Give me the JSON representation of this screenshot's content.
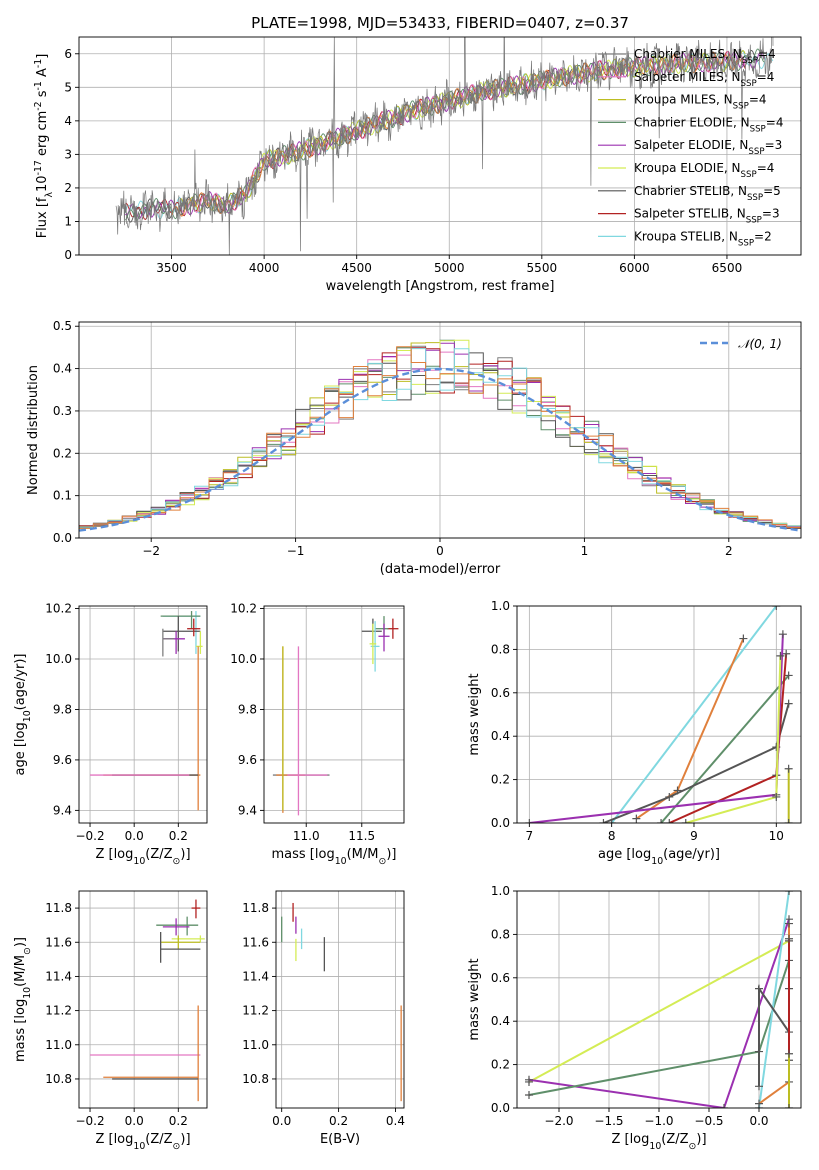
{
  "colors": {
    "chabrier_miles": "#7f7f7f",
    "salpeter_miles": "#e377c2",
    "kroupa_miles": "#bcbd22",
    "chabrier_elodie": "#5f8f6a",
    "salpeter_elodie": "#9b30b0",
    "kroupa_elodie": "#d4ec55",
    "chabrier_stelib": "#555555",
    "salpeter_stelib": "#b22222",
    "kroupa_stelib": "#80d8e0",
    "orange": "#e0803c",
    "normal": "#5b8fd9"
  },
  "chart_data": [
    {
      "id": "spectrum",
      "type": "line",
      "title": "PLATE=1998, MJD=53433, FIBERID=0407, z=0.37",
      "xlabel": "wavelength [Angstrom, rest frame]",
      "ylabel": "Flux [f$_\\lambda$10$^{-17}$ erg cm$^{-2}$ s$^{-1}$ A$^{-1}$]",
      "xlim": [
        3000,
        6900
      ],
      "ylim": [
        0,
        6.5
      ],
      "xticks": [
        "3500",
        "4000",
        "4500",
        "5000",
        "5500",
        "6000",
        "6500"
      ],
      "yticks": [
        "0",
        "1",
        "2",
        "3",
        "4",
        "5",
        "6"
      ],
      "grid": true,
      "legend_position": "upper right",
      "legend": [
        {
          "label": "Chabrier MILES, N",
          "sub": "SSP",
          "tail": "=4"
        },
        {
          "label": "Salpeter MILES, N",
          "sub": "SSP",
          "tail": "=4"
        },
        {
          "label": "Kroupa MILES, N",
          "sub": "SSP",
          "tail": "=4"
        },
        {
          "label": "Chabrier ELODIE, N",
          "sub": "SSP",
          "tail": "=4"
        },
        {
          "label": "Salpeter ELODIE, N",
          "sub": "SSP",
          "tail": "=3"
        },
        {
          "label": "Kroupa ELODIE, N",
          "sub": "SSP",
          "tail": "=4"
        },
        {
          "label": "Chabrier STELIB, N",
          "sub": "SSP",
          "tail": "=5"
        },
        {
          "label": "Salpeter STELIB, N",
          "sub": "SSP",
          "tail": "=3"
        },
        {
          "label": "Kroupa STELIB, N",
          "sub": "SSP",
          "tail": "=2"
        }
      ],
      "continuum": {
        "x": [
          3200,
          3400,
          3500,
          3600,
          3700,
          3800,
          3900,
          4000,
          4200,
          4400,
          4600,
          4800,
          5000,
          5200,
          5400,
          5600,
          5800,
          6000,
          6200,
          6400,
          6600,
          6750
        ],
        "y": [
          1.2,
          1.4,
          1.35,
          1.5,
          1.6,
          1.5,
          1.8,
          2.8,
          3.1,
          3.5,
          3.9,
          4.3,
          4.6,
          4.9,
          5.1,
          5.3,
          5.5,
          5.6,
          5.7,
          5.75,
          5.8,
          5.9
        ]
      }
    },
    {
      "id": "residuals",
      "type": "histogram",
      "xlabel": "(data-model)/error",
      "ylabel": "Normed distribution",
      "xlim": [
        -2.5,
        2.5
      ],
      "ylim": [
        0,
        0.51
      ],
      "xticks": [
        "−2",
        "−1",
        "0",
        "1",
        "2"
      ],
      "yticks": [
        "0.0",
        "0.1",
        "0.2",
        "0.3",
        "0.4",
        "0.5"
      ],
      "grid": true,
      "legend_position": "upper right",
      "legend": [
        "$\\mathcal{N}(0, 1)$"
      ],
      "bin_width": 0.1
    },
    {
      "id": "age_vs_Z",
      "type": "errorbar",
      "xlabel": "Z [log$_{10}$(Z/Z$_\\odot$)]",
      "ylabel": "age  [log$_{10}$(age/yr)]",
      "xlim": [
        -0.25,
        0.33
      ],
      "ylim": [
        9.35,
        10.21
      ],
      "xticks": [
        "−0.2",
        "0.0",
        "0.2"
      ],
      "yticks": [
        "9.4",
        "9.6",
        "9.8",
        "10.0",
        "10.2"
      ],
      "grid": true,
      "points": [
        {
          "model": "kroupa_stelib",
          "x": 0.28,
          "y": 10.17,
          "xerr": [
            0.15,
            0.02
          ],
          "yerr": [
            0.15,
            0.02
          ]
        },
        {
          "model": "chabrier_elodie",
          "x": 0.26,
          "y": 10.17,
          "xerr": [
            0.14,
            0.04
          ],
          "yerr": [
            0.05,
            0.02
          ]
        },
        {
          "model": "chabrier_stelib",
          "x": 0.2,
          "y": 10.11,
          "xerr": [
            0.07,
            0.1
          ],
          "yerr": [
            0.08,
            0.06
          ]
        },
        {
          "model": "salpeter_stelib",
          "x": 0.27,
          "y": 10.12,
          "xerr": [
            0.03,
            0.03
          ],
          "yerr": [
            0.03,
            0.04
          ]
        },
        {
          "model": "salpeter_elodie",
          "x": 0.19,
          "y": 10.08,
          "xerr": [
            0.06,
            0.04
          ],
          "yerr": [
            0.06,
            0.03
          ]
        },
        {
          "model": "chabrier_miles",
          "x": 0.13,
          "y": 10.08,
          "xerr": [
            0.0,
            0.05
          ],
          "yerr": [
            0.07,
            0.04
          ]
        },
        {
          "model": "kroupa_elodie",
          "x": 0.3,
          "y": 10.05,
          "xerr": [
            0.02,
            0.01
          ],
          "yerr": [
            0.03,
            0.06
          ]
        },
        {
          "model": "orange",
          "x": 0.29,
          "y": 9.54,
          "xerr": [
            0.43,
            0.01
          ],
          "yerr": [
            0.14,
            0.51
          ]
        },
        {
          "model": "chabrier_stelib",
          "x": 0.1,
          "y": 9.54,
          "xerr": [
            0.2,
            0.19
          ],
          "yerr": [
            0.0,
            0.0
          ]
        },
        {
          "model": "salpeter_miles",
          "x": -0.1,
          "y": 9.54,
          "xerr": [
            0.1,
            0.35
          ],
          "yerr": [
            0.0,
            0.0
          ]
        }
      ]
    },
    {
      "id": "age_vs_mass",
      "type": "errorbar",
      "xlabel": "mass [log$_{10}$(M/M$_\\odot$)]",
      "xlim": [
        10.62,
        11.88
      ],
      "ylim": [
        9.35,
        10.21
      ],
      "xticks": [
        "11.0",
        "11.5"
      ],
      "yticks": [
        "9.4",
        "9.6",
        "9.8",
        "10.0",
        "10.2"
      ],
      "grid": true,
      "points": [
        {
          "model": "salpeter_stelib",
          "x": 11.78,
          "y": 10.12,
          "xerr": [
            0.05,
            0.05
          ],
          "yerr": [
            0.04,
            0.04
          ]
        },
        {
          "model": "chabrier_elodie",
          "x": 11.7,
          "y": 10.12,
          "xerr": [
            0.08,
            0.04
          ],
          "yerr": [
            0.03,
            0.05
          ]
        },
        {
          "model": "chabrier_stelib",
          "x": 11.6,
          "y": 10.11,
          "xerr": [
            0.1,
            0.08
          ],
          "yerr": [
            0.05,
            0.05
          ]
        },
        {
          "model": "salpeter_elodie",
          "x": 11.7,
          "y": 10.09,
          "xerr": [
            0.05,
            0.05
          ],
          "yerr": [
            0.06,
            0.05
          ]
        },
        {
          "model": "kroupa_stelib",
          "x": 11.62,
          "y": 10.05,
          "xerr": [
            0.04,
            0.04
          ],
          "yerr": [
            0.1,
            0.1
          ]
        },
        {
          "model": "kroupa_elodie",
          "x": 11.6,
          "y": 10.06,
          "xerr": [
            0.03,
            0.03
          ],
          "yerr": [
            0.08,
            0.08
          ]
        },
        {
          "model": "chabrier_miles",
          "x": 10.98,
          "y": 9.54,
          "xerr": [
            0.28,
            0.23
          ],
          "yerr": [
            0.0,
            0.0
          ]
        },
        {
          "model": "orange",
          "x": 10.79,
          "y": 9.54,
          "xerr": [
            0.06,
            0.2
          ],
          "yerr": [
            0.15,
            0.51
          ]
        },
        {
          "model": "salpeter_miles",
          "x": 10.93,
          "y": 9.54,
          "xerr": [
            0.1,
            0.26
          ],
          "yerr": [
            0.16,
            0.51
          ]
        },
        {
          "model": "kroupa_miles",
          "x": 10.79,
          "y": 9.54,
          "xerr": [
            0.0,
            0.0
          ],
          "yerr": [
            0.14,
            0.51
          ]
        }
      ]
    },
    {
      "id": "mass_weight_vs_age",
      "type": "line",
      "xlabel": "age  [log$_{10}$(age/yr)]",
      "ylabel": "mass weight",
      "xlim": [
        6.85,
        10.3
      ],
      "ylim": [
        0,
        1
      ],
      "xticks": [
        "7",
        "8",
        "9",
        "10"
      ],
      "yticks": [
        "0.0",
        "0.2",
        "0.4",
        "0.6",
        "0.8",
        "1.0"
      ],
      "grid": true,
      "series": [
        {
          "model": "kroupa_stelib",
          "x": [
            8.0,
            10.0
          ],
          "y": [
            0.0,
            1.0
          ]
        },
        {
          "model": "orange",
          "x": [
            8.3,
            8.8,
            9.6
          ],
          "y": [
            0.02,
            0.15,
            0.85
          ]
        },
        {
          "model": "chabrier_elodie",
          "x": [
            8.6,
            10.15
          ],
          "y": [
            0.0,
            0.68
          ]
        },
        {
          "model": "chabrier_stelib",
          "x": [
            7.9,
            8.7,
            10.0,
            10.15
          ],
          "y": [
            0.0,
            0.12,
            0.35,
            0.55
          ]
        },
        {
          "model": "salpeter_stelib",
          "x": [
            8.7,
            10.0,
            10.12
          ],
          "y": [
            0.0,
            0.22,
            0.78
          ]
        },
        {
          "model": "salpeter_elodie",
          "x": [
            7.0,
            10.0,
            10.08
          ],
          "y": [
            0.0,
            0.13,
            0.87
          ]
        },
        {
          "model": "kroupa_elodie",
          "x": [
            8.9,
            10.0,
            10.05
          ],
          "y": [
            0.0,
            0.12,
            0.77
          ]
        },
        {
          "model": "kroupa_miles",
          "x": [
            10.15,
            10.15
          ],
          "y": [
            0.0,
            0.25
          ]
        }
      ]
    },
    {
      "id": "mass_vs_Z",
      "type": "errorbar",
      "xlabel": "Z [log$_{10}$(Z/Z$_\\odot$)]",
      "ylabel": "mass [log$_{10}$(M/M$_\\odot$)]",
      "xlim": [
        -0.25,
        0.33
      ],
      "ylim": [
        10.63,
        11.9
      ],
      "xticks": [
        "−0.2",
        "0.0",
        "0.2"
      ],
      "yticks": [
        "10.8",
        "11.0",
        "11.2",
        "11.4",
        "11.6",
        "11.8"
      ],
      "grid": true,
      "points": [
        {
          "model": "salpeter_stelib",
          "x": 0.28,
          "y": 11.8,
          "xerr": [
            0.02,
            0.02
          ],
          "yerr": [
            0.06,
            0.05
          ]
        },
        {
          "model": "chabrier_elodie",
          "x": 0.24,
          "y": 11.7,
          "xerr": [
            0.14,
            0.05
          ],
          "yerr": [
            0.06,
            0.05
          ]
        },
        {
          "model": "salpeter_elodie",
          "x": 0.19,
          "y": 11.69,
          "xerr": [
            0.06,
            0.06
          ],
          "yerr": [
            0.05,
            0.05
          ]
        },
        {
          "model": "kroupa_elodie",
          "x": 0.3,
          "y": 11.62,
          "xerr": [
            0.13,
            0.02
          ],
          "yerr": [
            0.02,
            0.02
          ]
        },
        {
          "model": "kroupa_miles",
          "x": 0.2,
          "y": 11.6,
          "xerr": [
            0.08,
            0.1
          ],
          "yerr": [
            0.04,
            0.04
          ]
        },
        {
          "model": "chabrier_stelib",
          "x": 0.12,
          "y": 11.56,
          "xerr": [
            0.0,
            0.18
          ],
          "yerr": [
            0.08,
            0.1
          ]
        },
        {
          "model": "salpeter_miles",
          "x": -0.2,
          "y": 10.94,
          "xerr": [
            0.0,
            0.5
          ],
          "yerr": [
            0.0,
            0.0
          ]
        },
        {
          "model": "orange",
          "x": 0.29,
          "y": 10.81,
          "xerr": [
            0.43,
            0.0
          ],
          "yerr": [
            0.14,
            0.42
          ]
        },
        {
          "model": "chabrier_stelib",
          "x": 0.1,
          "y": 10.8,
          "xerr": [
            0.2,
            0.19
          ],
          "yerr": [
            0.0,
            0.0
          ]
        }
      ]
    },
    {
      "id": "mass_vs_ebv",
      "type": "errorbar",
      "xlabel": "E(B-V)",
      "xlim": [
        -0.02,
        0.43
      ],
      "ylim": [
        10.63,
        11.9
      ],
      "xticks": [
        "0.0",
        "0.2",
        "0.4"
      ],
      "yticks": [
        "10.8",
        "11.0",
        "11.2",
        "11.4",
        "11.6",
        "11.8"
      ],
      "grid": true,
      "points": [
        {
          "model": "salpeter_stelib",
          "x": 0.04,
          "y": 11.78,
          "xerr": [
            0,
            0
          ],
          "yerr": [
            0.06,
            0.05
          ]
        },
        {
          "model": "chabrier_elodie",
          "x": 0.0,
          "y": 11.68,
          "xerr": [
            0,
            0
          ],
          "yerr": [
            0.08,
            0.07
          ]
        },
        {
          "model": "salpeter_elodie",
          "x": 0.05,
          "y": 11.7,
          "xerr": [
            0,
            0
          ],
          "yerr": [
            0.05,
            0.05
          ]
        },
        {
          "model": "kroupa_stelib",
          "x": 0.07,
          "y": 11.62,
          "xerr": [
            0,
            0
          ],
          "yerr": [
            0.06,
            0.06
          ]
        },
        {
          "model": "kroupa_elodie",
          "x": 0.05,
          "y": 11.55,
          "xerr": [
            0,
            0
          ],
          "yerr": [
            0.06,
            0.07
          ]
        },
        {
          "model": "chabrier_stelib",
          "x": 0.15,
          "y": 11.53,
          "xerr": [
            0,
            0
          ],
          "yerr": [
            0.1,
            0.1
          ]
        },
        {
          "model": "orange",
          "x": 0.42,
          "y": 10.95,
          "xerr": [
            0,
            0
          ],
          "yerr": [
            0.28,
            0.28
          ]
        }
      ]
    },
    {
      "id": "mass_weight_vs_Z",
      "type": "line",
      "xlabel": "Z [log$_{10}$(Z/Z$_\\odot$)]",
      "ylabel": "mass weight",
      "xlim": [
        -2.42,
        0.42
      ],
      "ylim": [
        0,
        1
      ],
      "xticks": [
        "−2.0",
        "−1.5",
        "−1.0",
        "−0.5",
        "0.0"
      ],
      "yticks": [
        "0.0",
        "0.2",
        "0.4",
        "0.6",
        "0.8",
        "1.0"
      ],
      "grid": true,
      "series": [
        {
          "model": "kroupa_elodie",
          "x": [
            -2.3,
            0.3
          ],
          "y": [
            0.12,
            0.77
          ]
        },
        {
          "model": "salpeter_elodie",
          "x": [
            -2.3,
            -0.35,
            0.3
          ],
          "y": [
            0.13,
            0.0,
            0.87
          ]
        },
        {
          "model": "chabrier_elodie",
          "x": [
            -2.3,
            0.0,
            0.3
          ],
          "y": [
            0.06,
            0.26,
            0.68
          ]
        },
        {
          "model": "kroupa_stelib",
          "x": [
            0.0,
            0.3
          ],
          "y": [
            0.0,
            1.0
          ]
        },
        {
          "model": "chabrier_stelib",
          "x": [
            0.0,
            0.0,
            0.3,
            0.3
          ],
          "y": [
            0.1,
            0.55,
            0.35,
            0.55
          ]
        },
        {
          "model": "orange",
          "x": [
            0.0,
            0.3,
            0.3
          ],
          "y": [
            0.02,
            0.12,
            0.85
          ]
        },
        {
          "model": "salpeter_stelib",
          "x": [
            0.3,
            0.3
          ],
          "y": [
            0.22,
            0.78
          ]
        },
        {
          "model": "kroupa_miles",
          "x": [
            0.3,
            0.3
          ],
          "y": [
            0.0,
            0.25
          ]
        }
      ]
    }
  ]
}
